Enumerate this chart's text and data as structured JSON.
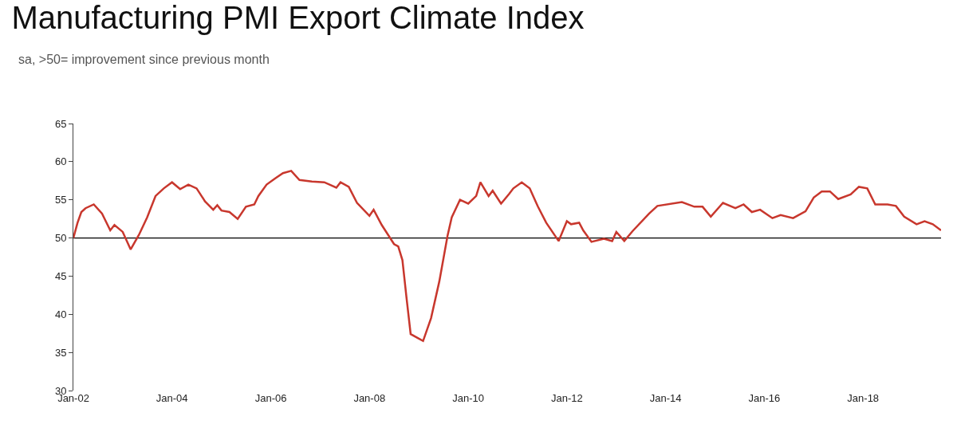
{
  "chart_data": {
    "type": "line",
    "title": "Manufacturing PMI Export Climate Index",
    "subtitle": "sa, >50= improvement since previous month",
    "x": [
      "2002-01",
      "2002-02",
      "2002-03",
      "2002-04",
      "2002-06",
      "2002-08",
      "2002-10",
      "2002-11",
      "2003-01",
      "2003-03",
      "2003-05",
      "2003-07",
      "2003-09",
      "2003-11",
      "2004-01",
      "2004-03",
      "2004-05",
      "2004-07",
      "2004-09",
      "2004-11",
      "2004-12",
      "2005-01",
      "2005-03",
      "2005-05",
      "2005-07",
      "2005-09",
      "2005-10",
      "2005-12",
      "2006-02",
      "2006-04",
      "2006-06",
      "2006-08",
      "2006-11",
      "2007-02",
      "2007-05",
      "2007-06",
      "2007-08",
      "2007-10",
      "2008-01",
      "2008-02",
      "2008-04",
      "2008-07",
      "2008-08",
      "2008-09",
      "2008-10",
      "2008-11",
      "2009-01",
      "2009-02",
      "2009-04",
      "2009-06",
      "2009-08",
      "2009-09",
      "2009-11",
      "2010-01",
      "2010-03",
      "2010-04",
      "2010-06",
      "2010-07",
      "2010-09",
      "2010-11",
      "2010-12",
      "2011-02",
      "2011-04",
      "2011-06",
      "2011-08",
      "2011-11",
      "2012-01",
      "2012-02",
      "2012-04",
      "2012-05",
      "2012-07",
      "2012-10",
      "2012-12",
      "2013-01",
      "2013-03",
      "2013-05",
      "2013-09",
      "2013-11",
      "2014-05",
      "2014-08",
      "2014-10",
      "2014-12",
      "2015-03",
      "2015-06",
      "2015-08",
      "2015-10",
      "2015-12",
      "2016-03",
      "2016-05",
      "2016-08",
      "2016-11",
      "2017-01",
      "2017-03",
      "2017-05",
      "2017-07",
      "2017-10",
      "2017-12",
      "2018-02",
      "2018-04",
      "2018-07",
      "2018-09",
      "2018-11",
      "2019-02",
      "2019-04",
      "2019-06",
      "2019-08"
    ],
    "series": [
      {
        "color": "#c8372d",
        "values": [
          50.0,
          52.0,
          53.4,
          53.9,
          54.4,
          53.2,
          51.0,
          51.7,
          50.8,
          48.5,
          50.4,
          52.7,
          55.5,
          56.5,
          57.3,
          56.4,
          57.0,
          56.5,
          54.8,
          53.7,
          54.3,
          53.6,
          53.4,
          52.5,
          54.1,
          54.4,
          55.5,
          57.0,
          57.8,
          58.5,
          58.8,
          57.6,
          57.4,
          57.3,
          56.6,
          57.3,
          56.7,
          54.6,
          52.9,
          53.7,
          51.7,
          49.2,
          48.9,
          47.1,
          42.2,
          37.4,
          36.8,
          36.5,
          39.5,
          44.3,
          50.3,
          52.7,
          55.0,
          54.5,
          55.5,
          57.3,
          55.5,
          56.2,
          54.5,
          55.8,
          56.5,
          57.3,
          56.5,
          54.1,
          52.0,
          49.6,
          52.2,
          51.8,
          52.0,
          51.0,
          49.5,
          49.9,
          49.6,
          50.8,
          49.6,
          50.9,
          53.2,
          54.2,
          54.7,
          54.1,
          54.1,
          52.8,
          54.6,
          53.9,
          54.4,
          53.4,
          53.7,
          52.6,
          53.0,
          52.6,
          53.5,
          55.3,
          56.1,
          56.1,
          55.1,
          55.7,
          56.7,
          56.5,
          54.4,
          54.4,
          54.2,
          52.8,
          51.8,
          52.2,
          51.8,
          51.0
        ]
      }
    ],
    "xlim": [
      "2002-01",
      "2019-08"
    ],
    "xticks": [
      {
        "value": "2002-01",
        "label": "Jan-02"
      },
      {
        "value": "2004-01",
        "label": "Jan-04"
      },
      {
        "value": "2006-01",
        "label": "Jan-06"
      },
      {
        "value": "2008-01",
        "label": "Jan-08"
      },
      {
        "value": "2010-01",
        "label": "Jan-10"
      },
      {
        "value": "2012-01",
        "label": "Jan-12"
      },
      {
        "value": "2014-01",
        "label": "Jan-14"
      },
      {
        "value": "2016-01",
        "label": "Jan-16"
      },
      {
        "value": "2018-01",
        "label": "Jan-18"
      }
    ],
    "ylim": [
      30,
      65
    ],
    "yticks": [
      30,
      35,
      40,
      45,
      50,
      55,
      60,
      65
    ],
    "ref_lines": [
      {
        "axis": "y",
        "value": 50,
        "color": "#000000"
      }
    ],
    "grid": false,
    "marker": "none",
    "line_style": "solid"
  }
}
